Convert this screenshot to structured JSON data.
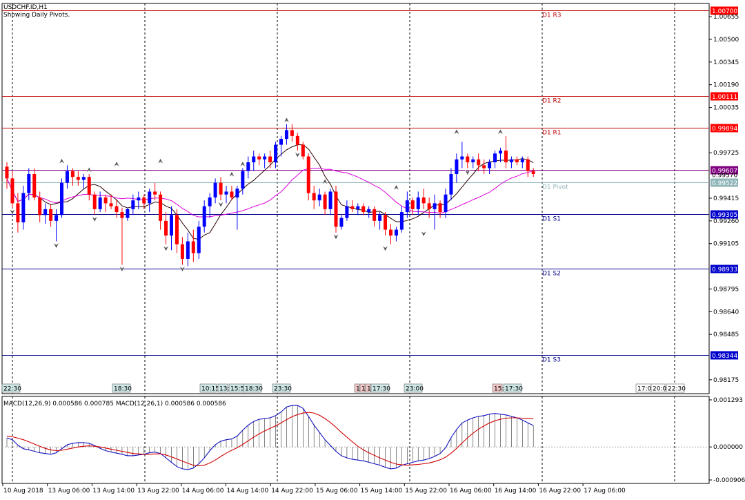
{
  "header": {
    "symbol": "USDCHF.ID,H1",
    "subtitle": "Showing Daily Pivots."
  },
  "colors": {
    "bull": "#0000ff",
    "bear": "#ff0000",
    "resistance": "#c00000",
    "support": "#00008b",
    "pivot": "#8fb5b8",
    "ma_fast": "#2b0000",
    "ma_slow": "#dd00dd",
    "macd_line": "#1010c0",
    "signal_line": "#d00000",
    "current_bg": "#800080"
  },
  "chart_data": [
    {
      "type": "candlestick",
      "title": "USDCHF.ID,H1",
      "ylim": [
        0.9808,
        1.00745
      ],
      "y_ticks": [
        "1.00655",
        "1.00500",
        "1.00345",
        "1.00190",
        "1.00035",
        "0.99725",
        "0.99415",
        "0.99260",
        "0.99105",
        "0.98795",
        "0.98640",
        "0.98485",
        "0.98175"
      ],
      "pivot_levels": [
        {
          "name": "D1 R3",
          "value": 1.007,
          "label": "1.00700",
          "role": "resistance"
        },
        {
          "name": "D1 R2",
          "value": 1.00111,
          "label": "1.00111",
          "role": "resistance"
        },
        {
          "name": "D1 R1",
          "value": 0.99894,
          "label": "0.99894",
          "role": "resistance"
        },
        {
          "name": "D1 Pivot",
          "value": 0.99522,
          "label": "0.99522",
          "role": "pivot"
        },
        {
          "name": "D1 S1",
          "value": 0.99305,
          "label": "0.99305",
          "role": "support"
        },
        {
          "name": "D1 S2",
          "value": 0.98933,
          "label": "0.98933",
          "role": "support"
        },
        {
          "name": "D1 S3",
          "value": 0.98344,
          "label": "0.98344",
          "role": "support"
        }
      ],
      "current_price": {
        "value": 0.99607,
        "label": "0.99607"
      },
      "secondary_price_label": "0.99570",
      "candles": [
        [
          0.9963,
          0.9966,
          0.9948,
          0.9955
        ],
        [
          0.9955,
          0.996,
          0.9935,
          0.9938
        ],
        [
          0.9938,
          0.9945,
          0.9918,
          0.9925
        ],
        [
          0.9925,
          0.995,
          0.992,
          0.9945
        ],
        [
          0.9945,
          0.9962,
          0.994,
          0.9958
        ],
        [
          0.9958,
          0.9962,
          0.994,
          0.9942
        ],
        [
          0.9942,
          0.9946,
          0.9925,
          0.993
        ],
        [
          0.993,
          0.9938,
          0.9924,
          0.9934
        ],
        [
          0.9934,
          0.9937,
          0.9922,
          0.9926
        ],
        [
          0.9926,
          0.9934,
          0.9912,
          0.993
        ],
        [
          0.993,
          0.9955,
          0.9928,
          0.9952
        ],
        [
          0.9952,
          0.9964,
          0.9948,
          0.996
        ],
        [
          0.996,
          0.9962,
          0.995,
          0.9956
        ],
        [
          0.9956,
          0.996,
          0.995,
          0.9954
        ],
        [
          0.9954,
          0.9958,
          0.9948,
          0.9956
        ],
        [
          0.9956,
          0.9958,
          0.994,
          0.9944
        ],
        [
          0.9944,
          0.9946,
          0.993,
          0.9934
        ],
        [
          0.9934,
          0.9946,
          0.9932,
          0.9942
        ],
        [
          0.9942,
          0.9944,
          0.9932,
          0.9938
        ],
        [
          0.9938,
          0.9944,
          0.9934,
          0.9936
        ],
        [
          0.9936,
          0.994,
          0.9928,
          0.9932
        ],
        [
          0.9932,
          0.9935,
          0.9896,
          0.9928
        ],
        [
          0.9928,
          0.9935,
          0.9926,
          0.9934
        ],
        [
          0.9934,
          0.9944,
          0.993,
          0.994
        ],
        [
          0.994,
          0.9946,
          0.9934,
          0.9942
        ],
        [
          0.9942,
          0.9944,
          0.9934,
          0.9938
        ],
        [
          0.9938,
          0.9948,
          0.9932,
          0.9946
        ],
        [
          0.9946,
          0.9952,
          0.994,
          0.9944
        ],
        [
          0.9944,
          0.9946,
          0.992,
          0.9926
        ],
        [
          0.9926,
          0.9932,
          0.991,
          0.9916
        ],
        [
          0.9916,
          0.9936,
          0.9906,
          0.993
        ],
        [
          0.993,
          0.9934,
          0.9904,
          0.991
        ],
        [
          0.991,
          0.9915,
          0.9896,
          0.99
        ],
        [
          0.99,
          0.9918,
          0.9895,
          0.9912
        ],
        [
          0.9912,
          0.992,
          0.9898,
          0.9904
        ],
        [
          0.9904,
          0.9926,
          0.99,
          0.9922
        ],
        [
          0.9922,
          0.994,
          0.9918,
          0.9936
        ],
        [
          0.9936,
          0.9945,
          0.9928,
          0.9942
        ],
        [
          0.9942,
          0.9955,
          0.9938,
          0.9952
        ],
        [
          0.9952,
          0.9956,
          0.994,
          0.9944
        ],
        [
          0.9944,
          0.995,
          0.9938,
          0.9946
        ],
        [
          0.9946,
          0.995,
          0.994,
          0.9942
        ],
        [
          0.9942,
          0.995,
          0.992,
          0.9948
        ],
        [
          0.9948,
          0.9962,
          0.9944,
          0.996
        ],
        [
          0.996,
          0.997,
          0.9955,
          0.9966
        ],
        [
          0.9966,
          0.9974,
          0.996,
          0.997
        ],
        [
          0.997,
          0.9972,
          0.9964,
          0.9968
        ],
        [
          0.9968,
          0.9972,
          0.9962,
          0.997
        ],
        [
          0.997,
          0.9974,
          0.9962,
          0.9966
        ],
        [
          0.9966,
          0.998,
          0.9962,
          0.9978
        ],
        [
          0.9978,
          0.9984,
          0.997,
          0.9982
        ],
        [
          0.9982,
          0.9992,
          0.9978,
          0.9988
        ],
        [
          0.9988,
          0.9992,
          0.998,
          0.9984
        ],
        [
          0.9984,
          0.9986,
          0.9974,
          0.9978
        ],
        [
          0.9978,
          0.998,
          0.9968,
          0.997
        ],
        [
          0.997,
          0.9972,
          0.994,
          0.9945
        ],
        [
          0.9945,
          0.995,
          0.9934,
          0.994
        ],
        [
          0.994,
          0.9948,
          0.9936,
          0.9944
        ],
        [
          0.9944,
          0.9946,
          0.993,
          0.9934
        ],
        [
          0.9934,
          0.9948,
          0.993,
          0.9946
        ],
        [
          0.9946,
          0.995,
          0.9918,
          0.9922
        ],
        [
          0.9922,
          0.993,
          0.992,
          0.9928
        ],
        [
          0.9928,
          0.994,
          0.9926,
          0.9936
        ],
        [
          0.9936,
          0.994,
          0.9932,
          0.9934
        ],
        [
          0.9934,
          0.9938,
          0.993,
          0.9936
        ],
        [
          0.9936,
          0.9938,
          0.993,
          0.9932
        ],
        [
          0.9932,
          0.9936,
          0.9928,
          0.9934
        ],
        [
          0.9934,
          0.9936,
          0.9922,
          0.9926
        ],
        [
          0.9926,
          0.9932,
          0.992,
          0.993
        ],
        [
          0.993,
          0.9932,
          0.9916,
          0.992
        ],
        [
          0.992,
          0.9924,
          0.991,
          0.9916
        ],
        [
          0.9916,
          0.9922,
          0.9912,
          0.992
        ],
        [
          0.992,
          0.9936,
          0.9918,
          0.9932
        ],
        [
          0.9932,
          0.9946,
          0.9928,
          0.994
        ],
        [
          0.994,
          0.9942,
          0.993,
          0.9934
        ],
        [
          0.9934,
          0.9946,
          0.993,
          0.9942
        ],
        [
          0.9942,
          0.9948,
          0.9934,
          0.9938
        ],
        [
          0.9938,
          0.9942,
          0.9928,
          0.9934
        ],
        [
          0.9934,
          0.9944,
          0.992,
          0.9938
        ],
        [
          0.9938,
          0.994,
          0.9928,
          0.9932
        ],
        [
          0.9932,
          0.9948,
          0.9928,
          0.9944
        ],
        [
          0.9944,
          0.9962,
          0.994,
          0.9958
        ],
        [
          0.9958,
          0.9972,
          0.9952,
          0.9968
        ],
        [
          0.9968,
          0.998,
          0.9962,
          0.997
        ],
        [
          0.997,
          0.9972,
          0.9962,
          0.9966
        ],
        [
          0.9966,
          0.997,
          0.9962,
          0.9968
        ],
        [
          0.9968,
          0.9972,
          0.996,
          0.9964
        ],
        [
          0.9964,
          0.9968,
          0.9958,
          0.9962
        ],
        [
          0.9962,
          0.9968,
          0.9958,
          0.9966
        ],
        [
          0.9966,
          0.9974,
          0.9962,
          0.9972
        ],
        [
          0.9972,
          0.9976,
          0.9966,
          0.9974
        ],
        [
          0.9974,
          0.9984,
          0.9962,
          0.9966
        ],
        [
          0.9966,
          0.997,
          0.9962,
          0.9968
        ],
        [
          0.9968,
          0.997,
          0.9964,
          0.9966
        ],
        [
          0.9966,
          0.997,
          0.9962,
          0.9968
        ],
        [
          0.9968,
          0.997,
          0.9956,
          0.996
        ],
        [
          0.996,
          0.9962,
          0.9956,
          0.9958
        ]
      ],
      "fractals_up": [
        [
          10,
          0.9964
        ],
        [
          15,
          0.9958
        ],
        [
          20,
          0.9962
        ],
        [
          28,
          0.9964
        ],
        [
          41,
          0.9955
        ],
        [
          43,
          0.9962
        ],
        [
          51,
          0.9992
        ],
        [
          58,
          0.995
        ],
        [
          71,
          0.9946
        ],
        [
          82,
          0.9984
        ],
        [
          90,
          0.9984
        ]
      ],
      "fractals_down": [
        [
          1,
          0.9935
        ],
        [
          9,
          0.9912
        ],
        [
          16,
          0.993
        ],
        [
          21,
          0.9896
        ],
        [
          29,
          0.991
        ],
        [
          32,
          0.9896
        ],
        [
          39,
          0.994
        ],
        [
          53,
          0.9974
        ],
        [
          60,
          0.9918
        ],
        [
          69,
          0.991
        ],
        [
          76,
          0.992
        ],
        [
          84,
          0.9962
        ]
      ],
      "x_labels": [
        "10 Aug 2018",
        "13 Aug 06:00",
        "13 Aug 14:00",
        "13 Aug 22:00",
        "14 Aug 06:00",
        "14 Aug 14:00",
        "14 Aug 22:00",
        "15 Aug 06:00",
        "15 Aug 14:00",
        "15 Aug 22:00",
        "16 Aug 06:00",
        "16 Aug 14:00",
        "16 Aug 22:00",
        "17 Aug 06:00"
      ],
      "time_tags": [
        {
          "text": "22:30",
          "style": "teal"
        },
        {
          "text": "18:30",
          "style": "teal"
        },
        {
          "text": "10:15",
          "style": "teal"
        },
        {
          "text": "13:",
          "style": "teal"
        },
        {
          "text": "15:55",
          "style": "teal"
        },
        {
          "text": "18:30",
          "style": "teal"
        },
        {
          "text": "23:30",
          "style": "teal"
        },
        {
          "text": "1",
          "style": "red"
        },
        {
          "text": "1",
          "style": "red"
        },
        {
          "text": "1",
          "style": "red"
        },
        {
          "text": "17:30",
          "style": "teal"
        },
        {
          "text": "23:00",
          "style": "teal"
        },
        {
          "text": "15:",
          "style": "red"
        },
        {
          "text": "17:30",
          "style": "teal"
        },
        {
          "text": "17:00",
          "style": "plain"
        },
        {
          "text": "20:0",
          "style": "plain"
        },
        {
          "text": "22:30",
          "style": "plain"
        }
      ]
    },
    {
      "type": "macd",
      "title": "MACD(12,26,9) 0.000586 0.000785 MACD(12,26,1) 0.000586 0.000586",
      "ylim": [
        -0.000906,
        0.001293
      ],
      "y_ticks": [
        "0.001293",
        "0.000000",
        "-0.000906"
      ],
      "histogram": [
        0.00025,
        0.0002,
        5e-05,
        -5e-05,
        -8e-05,
        -0.00012,
        -0.00016,
        -0.00018,
        -0.0002,
        -0.00016,
        -5e-05,
        6e-05,
        0.0001,
        0.00012,
        0.00012,
        0.0001,
        4e-05,
        -4e-05,
        -0.0001,
        -0.00014,
        -0.00017,
        -0.0002,
        -0.00024,
        -0.00024,
        -0.00022,
        -0.0002,
        -0.00016,
        -0.00014,
        -0.00018,
        -0.0003,
        -0.00042,
        -0.00054,
        -0.0006,
        -0.00062,
        -0.00058,
        -0.00046,
        -0.0003,
        -0.0001,
        6e-05,
        0.00016,
        0.0002,
        0.00022,
        0.0003,
        0.00046,
        0.0006,
        0.0007,
        0.00076,
        0.00078,
        0.0008,
        0.00086,
        0.00096,
        0.0011,
        0.00114,
        0.00114,
        0.00106,
        0.00084,
        0.0006,
        0.0004,
        0.0002,
        4e-05,
        -0.00012,
        -0.00024,
        -0.0003,
        -0.00034,
        -0.00036,
        -0.00038,
        -0.00042,
        -0.00046,
        -0.0005,
        -0.00056,
        -0.0006,
        -0.00058,
        -0.0005,
        -0.00046,
        -0.00042,
        -0.00038,
        -0.00036,
        -0.00032,
        -0.00026,
        -0.00018,
        -2e-05,
        0.00026,
        0.00048,
        0.00066,
        0.00074,
        0.0008,
        0.00084,
        0.00086,
        0.0009,
        0.00092,
        0.0009,
        0.00088,
        0.00084,
        0.0008,
        0.00074,
        0.00066,
        0.00059
      ],
      "signal": [
        0.0003,
        0.00028,
        0.00024,
        0.0002,
        0.00014,
        8e-05,
        2e-05,
        -4e-05,
        -8e-05,
        -0.0001,
        -9e-05,
        -6e-05,
        -3e-05,
        0.0,
        2e-05,
        3e-05,
        2e-05,
        0.0,
        -3e-05,
        -6e-05,
        -9e-05,
        -0.00012,
        -0.00015,
        -0.00018,
        -0.00019,
        -0.0002,
        -0.0002,
        -0.00019,
        -0.00019,
        -0.00022,
        -0.00027,
        -0.00033,
        -0.00039,
        -0.00045,
        -0.0005,
        -0.00052,
        -0.0005,
        -0.00044,
        -0.00036,
        -0.00026,
        -0.00017,
        -9e-05,
        -2e-05,
        7e-05,
        0.00017,
        0.00027,
        0.00036,
        0.00044,
        0.00051,
        0.00058,
        0.00066,
        0.00075,
        0.00083,
        0.00089,
        0.00093,
        0.00095,
        0.00093,
        0.00087,
        0.00078,
        0.00067,
        0.00054,
        0.0004,
        0.00027,
        0.00014,
        2e-05,
        -8e-05,
        -0.00016,
        -0.00023,
        -0.0003,
        -0.00036,
        -0.00042,
        -0.00047,
        -0.00049,
        -0.0005,
        -0.00049,
        -0.00048,
        -0.00046,
        -0.00044,
        -0.0004,
        -0.00035,
        -0.00028,
        -0.00017,
        -4e-05,
        0.00011,
        0.00025,
        0.00038,
        0.00049,
        0.00058,
        0.00066,
        0.00072,
        0.00076,
        0.00079,
        0.0008,
        0.0008,
        0.00079,
        0.00078,
        0.00078
      ]
    }
  ]
}
